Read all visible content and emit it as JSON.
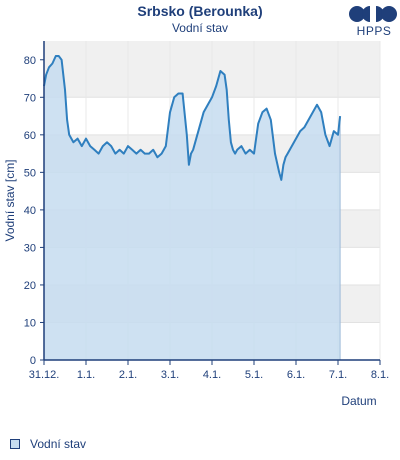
{
  "header": {
    "title": "Srbsko (Berounka)",
    "subtitle": "Vodní stav"
  },
  "logo": {
    "text": "HPPS"
  },
  "legend": {
    "items": [
      {
        "label": "Vodní stav",
        "color": "#c6dcf0"
      }
    ]
  },
  "colors": {
    "line": "#2f7fbf",
    "fill": "#c6dcf0",
    "band": "#f0f0f0",
    "axis": "#1f3f7a",
    "text": "#1f3f7a"
  },
  "chart_data": {
    "type": "area",
    "title": "Srbsko (Berounka)",
    "subtitle": "Vodní stav",
    "xlabel": "Datum",
    "ylabel": "Vodní stav [cm]",
    "xlim": [
      0,
      8
    ],
    "ylim": [
      0,
      85
    ],
    "x_ticks": [
      {
        "x": 0,
        "label": "31.12."
      },
      {
        "x": 1,
        "label": "1.1."
      },
      {
        "x": 2,
        "label": "2.1."
      },
      {
        "x": 3,
        "label": "3.1."
      },
      {
        "x": 4,
        "label": "4.1."
      },
      {
        "x": 5,
        "label": "5.1."
      },
      {
        "x": 6,
        "label": "6.1."
      },
      {
        "x": 7,
        "label": "7.1."
      },
      {
        "x": 8,
        "label": "8.1."
      }
    ],
    "y_ticks": [
      0,
      10,
      20,
      30,
      40,
      50,
      60,
      70,
      80
    ],
    "grid": "alternating horizontal bands",
    "legend_position": "bottom-left",
    "series": [
      {
        "name": "Vodní stav",
        "x": [
          0.0,
          0.05,
          0.12,
          0.2,
          0.28,
          0.35,
          0.42,
          0.5,
          0.55,
          0.6,
          0.7,
          0.8,
          0.9,
          1.0,
          1.1,
          1.2,
          1.3,
          1.4,
          1.5,
          1.6,
          1.7,
          1.8,
          1.9,
          2.0,
          2.1,
          2.2,
          2.3,
          2.4,
          2.5,
          2.6,
          2.7,
          2.8,
          2.9,
          3.0,
          3.05,
          3.1,
          3.2,
          3.3,
          3.4,
          3.45,
          3.5,
          3.55,
          3.6,
          3.7,
          3.8,
          3.9,
          4.0,
          4.1,
          4.2,
          4.3,
          4.35,
          4.4,
          4.45,
          4.5,
          4.55,
          4.6,
          4.7,
          4.8,
          4.9,
          5.0,
          5.1,
          5.2,
          5.3,
          5.4,
          5.5,
          5.6,
          5.65,
          5.7,
          5.75,
          5.8,
          5.9,
          6.0,
          6.1,
          6.2,
          6.3,
          6.4,
          6.5,
          6.6,
          6.7,
          6.8,
          6.9,
          7.0,
          7.05
        ],
        "y": [
          73,
          76,
          78,
          79,
          81,
          81,
          80,
          72,
          64,
          60,
          58,
          59,
          57,
          59,
          57,
          56,
          55,
          57,
          58,
          57,
          55,
          56,
          55,
          57,
          56,
          55,
          56,
          55,
          55,
          56,
          54,
          55,
          57,
          66,
          68,
          70,
          71,
          71,
          60,
          52,
          55,
          56,
          58,
          62,
          66,
          68,
          70,
          73,
          77,
          76,
          72,
          64,
          58,
          56,
          55,
          56,
          57,
          55,
          56,
          55,
          63,
          66,
          67,
          64,
          55,
          50,
          48,
          52,
          54,
          55,
          57,
          59,
          61,
          62,
          64,
          66,
          68,
          66,
          60,
          57,
          61,
          60,
          65
        ]
      }
    ]
  }
}
